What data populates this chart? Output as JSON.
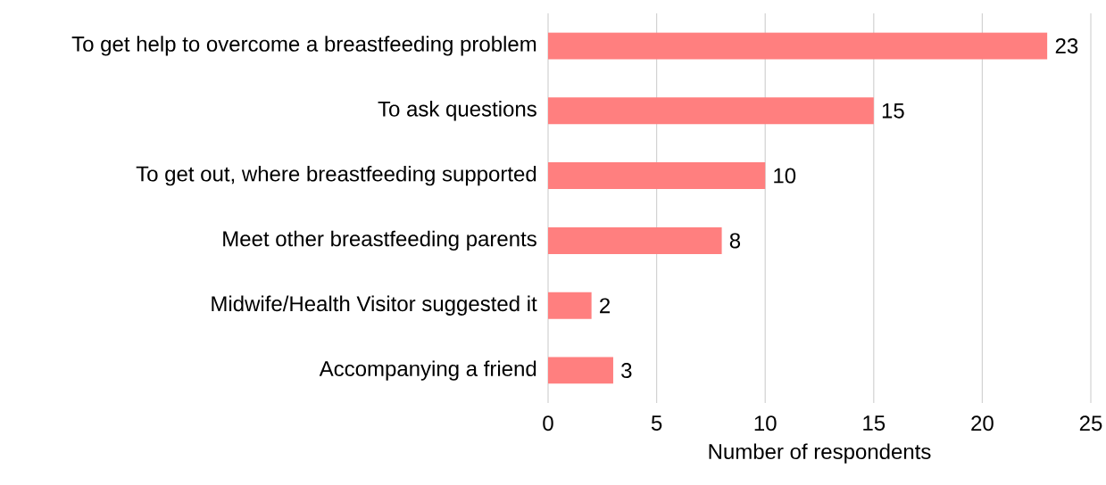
{
  "chart_data": {
    "type": "bar",
    "orientation": "horizontal",
    "xlabel": "Number of respondents",
    "categories": [
      "To get help to overcome a breastfeeding problem",
      "To ask questions",
      "To get out, where breastfeeding supported",
      "Meet other breastfeeding parents",
      "Midwife/Health Visitor suggested it",
      "Accompanying a friend"
    ],
    "values": [
      23,
      15,
      10,
      8,
      2,
      3
    ],
    "color": "#ff7f7f",
    "xlim": [
      0,
      25
    ],
    "xticks": [
      0,
      5,
      10,
      15,
      20,
      25
    ],
    "grid": "x",
    "data_labels": true
  }
}
